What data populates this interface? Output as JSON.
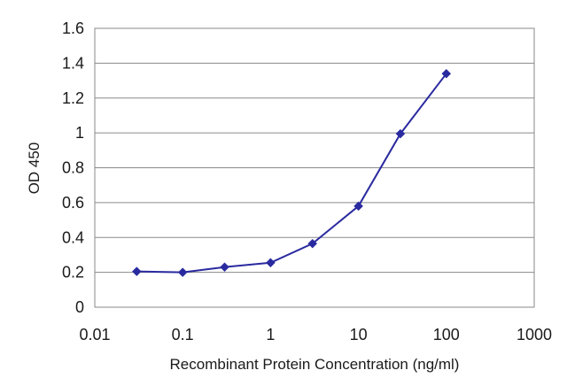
{
  "chart_data": {
    "type": "line",
    "title": "",
    "xlabel": "Recombinant Protein Concentration (ng/ml)",
    "ylabel": "OD 450",
    "x_scale": "log",
    "xlim": [
      0.01,
      1000
    ],
    "ylim": [
      0,
      1.6
    ],
    "x_tick_labels": [
      "0.01",
      "0.1",
      "1",
      "10",
      "100",
      "1000"
    ],
    "y_tick_labels": [
      "0",
      "0.2",
      "0.4",
      "0.6",
      "0.8",
      "1",
      "1.2",
      "1.4",
      "1.6"
    ],
    "grid": "horizontal",
    "legend": "none",
    "series": [
      {
        "x": [
          0.03,
          0.1,
          0.3,
          1,
          3,
          10,
          30,
          100
        ],
        "y": [
          0.205,
          0.2,
          0.23,
          0.255,
          0.365,
          0.58,
          0.995,
          1.34
        ],
        "color": "#2a2aa0",
        "marker": "diamond"
      }
    ]
  }
}
